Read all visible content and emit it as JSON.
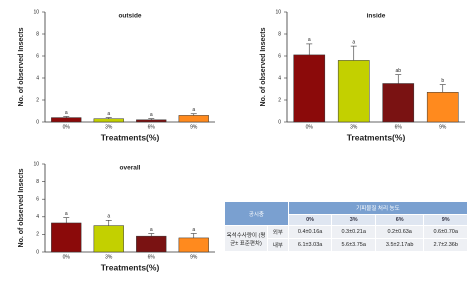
{
  "chart_data": [
    {
      "type": "bar",
      "title": "outside",
      "y_label": "No. of observed Insects",
      "x_label": "Treatments(%)",
      "categories": [
        "0%",
        "3%",
        "6%",
        "9%"
      ],
      "values": [
        0.4,
        0.3,
        0.2,
        0.6
      ],
      "errors": [
        0.1,
        0.1,
        0.1,
        0.15
      ],
      "letters": [
        "a",
        "a",
        "a",
        "a"
      ],
      "colors": [
        "#8b0a0a",
        "#c3d000",
        "#7a1212",
        "#ff8a1e"
      ],
      "ylim": [
        0,
        10
      ],
      "yticks": [
        0,
        2,
        4,
        6,
        8,
        10
      ]
    },
    {
      "type": "bar",
      "title": "inside",
      "y_label": "No. of observed Insects",
      "x_label": "Treatments(%)",
      "categories": [
        "0%",
        "3%",
        "6%",
        "9%"
      ],
      "values": [
        6.1,
        5.6,
        3.5,
        2.7
      ],
      "errors": [
        1.0,
        1.3,
        0.8,
        0.7
      ],
      "letters": [
        "a",
        "a",
        "ab",
        "b"
      ],
      "colors": [
        "#8b0a0a",
        "#c3d000",
        "#7a1212",
        "#ff8a1e"
      ],
      "ylim": [
        0,
        10
      ],
      "yticks": [
        0,
        2,
        4,
        6,
        8,
        10
      ]
    },
    {
      "type": "bar",
      "title": "overall",
      "y_label": "No. of observed Insects",
      "x_label": "Treatments(%)",
      "categories": [
        "0%",
        "3%",
        "6%",
        "9%"
      ],
      "values": [
        3.3,
        3.0,
        1.8,
        1.6
      ],
      "errors": [
        0.6,
        0.6,
        0.3,
        0.5
      ],
      "letters": [
        "a",
        "a",
        "a",
        "a"
      ],
      "colors": [
        "#8b0a0a",
        "#c3d000",
        "#7a1212",
        "#ff8a1e"
      ],
      "ylim": [
        0,
        10
      ],
      "yticks": [
        0,
        2,
        4,
        6,
        8,
        10
      ]
    }
  ],
  "table": {
    "corner": "공시충",
    "group_header": "기피물질 처리 농도",
    "columns": [
      "0%",
      "3%",
      "6%",
      "9%"
    ],
    "row_header": "옥석수사량이 (평균± 표준편차)",
    "rows": [
      [
        "외부",
        "0.4±0.16a",
        "0.3±0.21a",
        "0.2±0.63a",
        "0.6±0.70a"
      ],
      [
        "내부",
        "6.1±3.03a",
        "5.6±3.75a",
        "3.5±2.17ab",
        "2.7±2.36b"
      ]
    ]
  }
}
